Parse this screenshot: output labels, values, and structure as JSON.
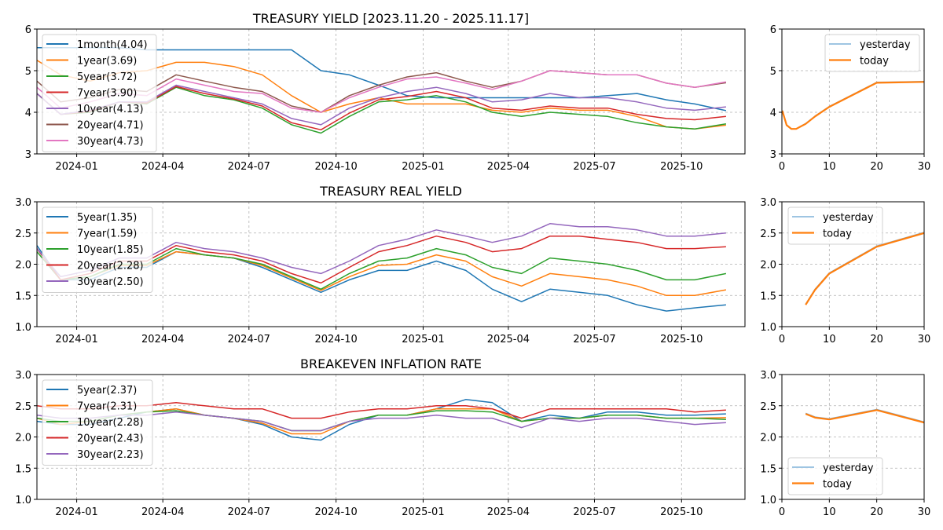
{
  "chart_data": [
    {
      "type": "line",
      "title": "TREASURY YIELD [2023.11.20 - 2025.11.17]",
      "xlabel": "",
      "ylabel": "",
      "ylim": [
        3,
        6
      ],
      "yticks": [
        "3",
        "4",
        "5",
        "6"
      ],
      "xlim": [
        "2023-11-20",
        "2025-12-07"
      ],
      "xticks": [
        "2024-01",
        "2024-04",
        "2024-07",
        "2024-10",
        "2025-01",
        "2025-04",
        "2025-07",
        "2025-10"
      ],
      "grid": true,
      "legend_placement": "upper-left",
      "x": [
        "2023-11-20",
        "2023-12-15",
        "2024-01-15",
        "2024-02-15",
        "2024-03-15",
        "2024-04-15",
        "2024-05-15",
        "2024-06-15",
        "2024-07-15",
        "2024-08-15",
        "2024-09-15",
        "2024-10-15",
        "2024-11-15",
        "2024-12-15",
        "2025-01-15",
        "2025-02-15",
        "2025-03-15",
        "2025-04-15",
        "2025-05-15",
        "2025-06-15",
        "2025-07-15",
        "2025-08-15",
        "2025-09-15",
        "2025-10-15",
        "2025-11-17"
      ],
      "series": [
        {
          "name": "1month(4.04)",
          "color": "#1f77b4",
          "values": [
            5.55,
            5.55,
            5.55,
            5.55,
            5.5,
            5.5,
            5.5,
            5.5,
            5.5,
            5.5,
            5.0,
            4.9,
            4.65,
            4.4,
            4.35,
            4.35,
            4.35,
            4.35,
            4.35,
            4.35,
            4.4,
            4.45,
            4.3,
            4.2,
            4.04
          ]
        },
        {
          "name": "1year(3.69)",
          "color": "#ff7f0e",
          "values": [
            5.25,
            4.9,
            4.75,
            4.95,
            5.0,
            5.2,
            5.2,
            5.1,
            4.9,
            4.4,
            4.0,
            4.2,
            4.35,
            4.2,
            4.2,
            4.2,
            4.05,
            4.0,
            4.1,
            4.05,
            4.05,
            3.9,
            3.65,
            3.6,
            3.69
          ]
        },
        {
          "name": "5year(3.72)",
          "color": "#2ca02c",
          "values": [
            4.45,
            3.95,
            4.0,
            4.25,
            4.2,
            4.6,
            4.4,
            4.3,
            4.1,
            3.7,
            3.5,
            3.9,
            4.25,
            4.3,
            4.4,
            4.25,
            4.0,
            3.9,
            4.0,
            3.95,
            3.9,
            3.75,
            3.65,
            3.6,
            3.72
          ]
        },
        {
          "name": "7year(3.90)",
          "color": "#d62728",
          "values": [
            4.45,
            3.95,
            4.02,
            4.25,
            4.22,
            4.62,
            4.45,
            4.32,
            4.15,
            3.75,
            3.58,
            3.98,
            4.3,
            4.38,
            4.5,
            4.35,
            4.1,
            4.05,
            4.15,
            4.1,
            4.1,
            3.95,
            3.85,
            3.82,
            3.9
          ]
        },
        {
          "name": "10year(4.13)",
          "color": "#9467bd",
          "values": [
            4.45,
            3.95,
            4.05,
            4.25,
            4.25,
            4.65,
            4.5,
            4.35,
            4.2,
            3.85,
            3.7,
            4.1,
            4.35,
            4.5,
            4.6,
            4.45,
            4.25,
            4.3,
            4.45,
            4.35,
            4.35,
            4.25,
            4.1,
            4.05,
            4.13
          ]
        },
        {
          "name": "20year(4.71)",
          "color": "#8c564b",
          "values": [
            4.75,
            4.25,
            4.35,
            4.55,
            4.5,
            4.9,
            4.75,
            4.6,
            4.5,
            4.15,
            4.0,
            4.4,
            4.65,
            4.85,
            4.95,
            4.75,
            4.6,
            4.75,
            5.0,
            4.95,
            4.9,
            4.9,
            4.7,
            4.6,
            4.71
          ]
        },
        {
          "name": "30year(4.73)",
          "color": "#e377c2",
          "values": [
            4.6,
            4.1,
            4.25,
            4.45,
            4.4,
            4.8,
            4.65,
            4.5,
            4.45,
            4.1,
            4.0,
            4.35,
            4.6,
            4.8,
            4.85,
            4.7,
            4.55,
            4.75,
            5.0,
            4.95,
            4.9,
            4.9,
            4.7,
            4.6,
            4.73
          ]
        }
      ]
    },
    {
      "type": "line",
      "title": "",
      "xlim": [
        0,
        30
      ],
      "ylim": [
        3,
        6
      ],
      "xticks": [
        "0",
        "10",
        "20",
        "30"
      ],
      "yticks": [
        "3",
        "4",
        "5",
        "6"
      ],
      "grid": true,
      "legend_placement": "upper-right",
      "series": [
        {
          "name": "yesterday",
          "color": "#7fb2d9",
          "x": [
            0.083,
            1,
            2,
            3,
            5,
            7,
            10,
            20,
            30
          ],
          "values": [
            4.04,
            3.7,
            3.6,
            3.6,
            3.73,
            3.91,
            4.14,
            4.72,
            4.74
          ]
        },
        {
          "name": "today",
          "color": "#ff7f0e",
          "x": [
            0.083,
            1,
            2,
            3,
            5,
            7,
            10,
            20,
            30
          ],
          "values": [
            4.04,
            3.69,
            3.6,
            3.6,
            3.72,
            3.9,
            4.13,
            4.71,
            4.73
          ]
        }
      ]
    },
    {
      "type": "line",
      "title": "TREASURY REAL YIELD",
      "ylim": [
        1.0,
        3.0
      ],
      "yticks": [
        "1.0",
        "1.5",
        "2.0",
        "2.5",
        "3.0"
      ],
      "xlim": [
        "2023-11-20",
        "2025-12-07"
      ],
      "xticks": [
        "2024-01",
        "2024-04",
        "2024-07",
        "2024-10",
        "2025-01",
        "2025-04",
        "2025-07",
        "2025-10"
      ],
      "grid": true,
      "legend_placement": "upper-left",
      "x": [
        "2023-11-20",
        "2023-12-15",
        "2024-01-15",
        "2024-02-15",
        "2024-03-15",
        "2024-04-15",
        "2024-05-15",
        "2024-06-15",
        "2024-07-15",
        "2024-08-15",
        "2024-09-15",
        "2024-10-15",
        "2024-11-15",
        "2024-12-15",
        "2025-01-15",
        "2025-02-15",
        "2025-03-15",
        "2025-04-15",
        "2025-05-15",
        "2025-06-15",
        "2025-07-15",
        "2025-08-15",
        "2025-09-15",
        "2025-10-15",
        "2025-11-17"
      ],
      "series": [
        {
          "name": "5year(1.35)",
          "color": "#1f77b4",
          "values": [
            2.3,
            1.75,
            1.75,
            1.95,
            1.95,
            2.2,
            2.15,
            2.1,
            1.95,
            1.75,
            1.55,
            1.75,
            1.9,
            1.9,
            2.05,
            1.9,
            1.6,
            1.4,
            1.6,
            1.55,
            1.5,
            1.35,
            1.25,
            1.3,
            1.35
          ]
        },
        {
          "name": "7year(1.59)",
          "color": "#ff7f0e",
          "values": [
            2.25,
            1.75,
            1.8,
            1.98,
            1.98,
            2.2,
            2.15,
            2.1,
            1.98,
            1.78,
            1.58,
            1.8,
            1.98,
            2.0,
            2.15,
            2.05,
            1.8,
            1.65,
            1.85,
            1.8,
            1.75,
            1.65,
            1.5,
            1.5,
            1.59
          ]
        },
        {
          "name": "10year(1.85)",
          "color": "#2ca02c",
          "values": [
            2.2,
            1.75,
            1.8,
            2.0,
            2.0,
            2.25,
            2.15,
            2.1,
            2.0,
            1.8,
            1.6,
            1.85,
            2.05,
            2.1,
            2.25,
            2.15,
            1.95,
            1.85,
            2.1,
            2.05,
            2.0,
            1.9,
            1.75,
            1.75,
            1.85
          ]
        },
        {
          "name": "20year(2.28)",
          "color": "#d62728",
          "values": [
            2.25,
            1.75,
            1.85,
            2.05,
            2.05,
            2.3,
            2.2,
            2.15,
            2.05,
            1.85,
            1.7,
            1.95,
            2.2,
            2.3,
            2.45,
            2.35,
            2.2,
            2.25,
            2.45,
            2.45,
            2.4,
            2.35,
            2.25,
            2.25,
            2.28
          ]
        },
        {
          "name": "30year(2.50)",
          "color": "#9467bd",
          "values": [
            2.25,
            1.8,
            1.9,
            2.1,
            2.1,
            2.35,
            2.25,
            2.2,
            2.1,
            1.95,
            1.85,
            2.05,
            2.3,
            2.4,
            2.55,
            2.45,
            2.35,
            2.45,
            2.65,
            2.6,
            2.6,
            2.55,
            2.45,
            2.45,
            2.5
          ]
        }
      ]
    },
    {
      "type": "line",
      "title": "",
      "xlim": [
        0,
        30
      ],
      "ylim": [
        1.0,
        3.0
      ],
      "xticks": [
        "0",
        "10",
        "20",
        "30"
      ],
      "yticks": [
        "1.0",
        "1.5",
        "2.0",
        "2.5",
        "3.0"
      ],
      "grid": true,
      "legend_placement": "upper-left",
      "series": [
        {
          "name": "yesterday",
          "color": "#7fb2d9",
          "x": [
            5,
            7,
            10,
            20,
            30
          ],
          "values": [
            1.36,
            1.6,
            1.86,
            2.29,
            2.51
          ]
        },
        {
          "name": "today",
          "color": "#ff7f0e",
          "x": [
            5,
            7,
            10,
            20,
            30
          ],
          "values": [
            1.35,
            1.59,
            1.85,
            2.28,
            2.5
          ]
        }
      ]
    },
    {
      "type": "line",
      "title": "BREAKEVEN INFLATION RATE",
      "ylim": [
        1.0,
        3.0
      ],
      "yticks": [
        "1.0",
        "1.5",
        "2.0",
        "2.5",
        "3.0"
      ],
      "xlim": [
        "2023-11-20",
        "2025-12-07"
      ],
      "xticks": [
        "2024-01",
        "2024-04",
        "2024-07",
        "2024-10",
        "2025-01",
        "2025-04",
        "2025-07",
        "2025-10"
      ],
      "grid": true,
      "legend_placement": "upper-left",
      "x": [
        "2023-11-20",
        "2023-12-15",
        "2024-01-15",
        "2024-02-15",
        "2024-03-15",
        "2024-04-15",
        "2024-05-15",
        "2024-06-15",
        "2024-07-15",
        "2024-08-15",
        "2024-09-15",
        "2024-10-15",
        "2024-11-15",
        "2024-12-15",
        "2025-01-15",
        "2025-02-15",
        "2025-03-15",
        "2025-04-15",
        "2025-05-15",
        "2025-06-15",
        "2025-07-15",
        "2025-08-15",
        "2025-09-15",
        "2025-10-15",
        "2025-11-17"
      ],
      "series": [
        {
          "name": "5year(2.37)",
          "color": "#1f77b4",
          "values": [
            2.25,
            2.2,
            2.2,
            2.3,
            2.4,
            2.45,
            2.35,
            2.3,
            2.2,
            2.0,
            1.95,
            2.2,
            2.35,
            2.35,
            2.45,
            2.6,
            2.55,
            2.25,
            2.35,
            2.3,
            2.4,
            2.4,
            2.35,
            2.35,
            2.37
          ]
        },
        {
          "name": "7year(2.31)",
          "color": "#ff7f0e",
          "values": [
            2.3,
            2.2,
            2.25,
            2.35,
            2.4,
            2.45,
            2.35,
            2.3,
            2.22,
            2.05,
            2.05,
            2.25,
            2.35,
            2.35,
            2.45,
            2.45,
            2.45,
            2.25,
            2.3,
            2.3,
            2.35,
            2.35,
            2.3,
            2.3,
            2.31
          ]
        },
        {
          "name": "10year(2.28)",
          "color": "#2ca02c",
          "values": [
            2.3,
            2.25,
            2.25,
            2.35,
            2.4,
            2.42,
            2.35,
            2.3,
            2.25,
            2.1,
            2.1,
            2.25,
            2.35,
            2.35,
            2.42,
            2.42,
            2.4,
            2.25,
            2.3,
            2.3,
            2.35,
            2.35,
            2.3,
            2.3,
            2.28
          ]
        },
        {
          "name": "20year(2.43)",
          "color": "#d62728",
          "values": [
            2.5,
            2.45,
            2.45,
            2.5,
            2.5,
            2.55,
            2.5,
            2.45,
            2.45,
            2.3,
            2.3,
            2.4,
            2.45,
            2.45,
            2.5,
            2.5,
            2.45,
            2.3,
            2.45,
            2.45,
            2.45,
            2.45,
            2.45,
            2.4,
            2.43
          ]
        },
        {
          "name": "30year(2.23)",
          "color": "#9467bd",
          "values": [
            2.35,
            2.3,
            2.3,
            2.35,
            2.35,
            2.4,
            2.35,
            2.3,
            2.25,
            2.1,
            2.1,
            2.25,
            2.3,
            2.3,
            2.35,
            2.3,
            2.3,
            2.15,
            2.3,
            2.25,
            2.3,
            2.3,
            2.25,
            2.2,
            2.23
          ]
        }
      ]
    },
    {
      "type": "line",
      "title": "",
      "xlim": [
        0,
        30
      ],
      "ylim": [
        1.0,
        3.0
      ],
      "xticks": [
        "0",
        "10",
        "20",
        "30"
      ],
      "yticks": [
        "1.0",
        "1.5",
        "2.0",
        "2.5",
        "3.0"
      ],
      "grid": true,
      "legend_placement": "lower-left",
      "series": [
        {
          "name": "yesterday",
          "color": "#7fb2d9",
          "x": [
            5,
            7,
            10,
            20,
            30
          ],
          "values": [
            2.38,
            2.32,
            2.29,
            2.44,
            2.24
          ]
        },
        {
          "name": "today",
          "color": "#ff7f0e",
          "x": [
            5,
            7,
            10,
            20,
            30
          ],
          "values": [
            2.37,
            2.31,
            2.28,
            2.43,
            2.23
          ]
        }
      ]
    }
  ]
}
